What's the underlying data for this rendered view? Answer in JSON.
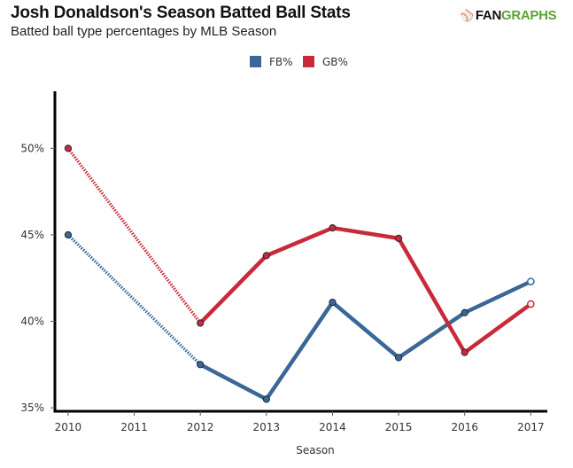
{
  "header": {
    "title": "Josh Donaldson's Season Batted Ball Stats",
    "subtitle": "Batted ball type percentages by MLB Season",
    "logo": {
      "mark": "⚾",
      "fan": "FAN",
      "graphs": "GRAPHS"
    }
  },
  "chart_data": {
    "type": "line",
    "title": "Josh Donaldson's Season Batted Ball Stats",
    "subtitle": "Batted ball type percentages by MLB Season",
    "xlabel": "Season",
    "ylabel": "",
    "x": [
      2010,
      2011,
      2012,
      2013,
      2014,
      2015,
      2016,
      2017
    ],
    "x_ticks": [
      "2010",
      "2011",
      "2012",
      "2013",
      "2014",
      "2015",
      "2016",
      "2017"
    ],
    "y_ticks": [
      "35%",
      "40%",
      "45%",
      "50%"
    ],
    "y_tick_values": [
      35,
      40,
      45,
      50
    ],
    "ylim": [
      34.8,
      53.3
    ],
    "xlim": [
      2009.8,
      2017.25
    ],
    "grid": false,
    "legend_position": "top-center",
    "series": [
      {
        "name": "FB%",
        "color": "#3a6796",
        "points": [
          [
            2010,
            45.0
          ],
          [
            2012,
            37.5
          ],
          [
            2013,
            35.5
          ],
          [
            2014,
            41.1
          ],
          [
            2015,
            37.9
          ],
          [
            2016,
            40.5
          ],
          [
            2017,
            42.3
          ]
        ]
      },
      {
        "name": "GB%",
        "color": "#c92a3a",
        "points": [
          [
            2010,
            50.0
          ],
          [
            2012,
            39.9
          ],
          [
            2013,
            43.8
          ],
          [
            2014,
            45.4
          ],
          [
            2015,
            44.8
          ],
          [
            2016,
            38.2
          ],
          [
            2017,
            41.0
          ]
        ]
      }
    ]
  }
}
